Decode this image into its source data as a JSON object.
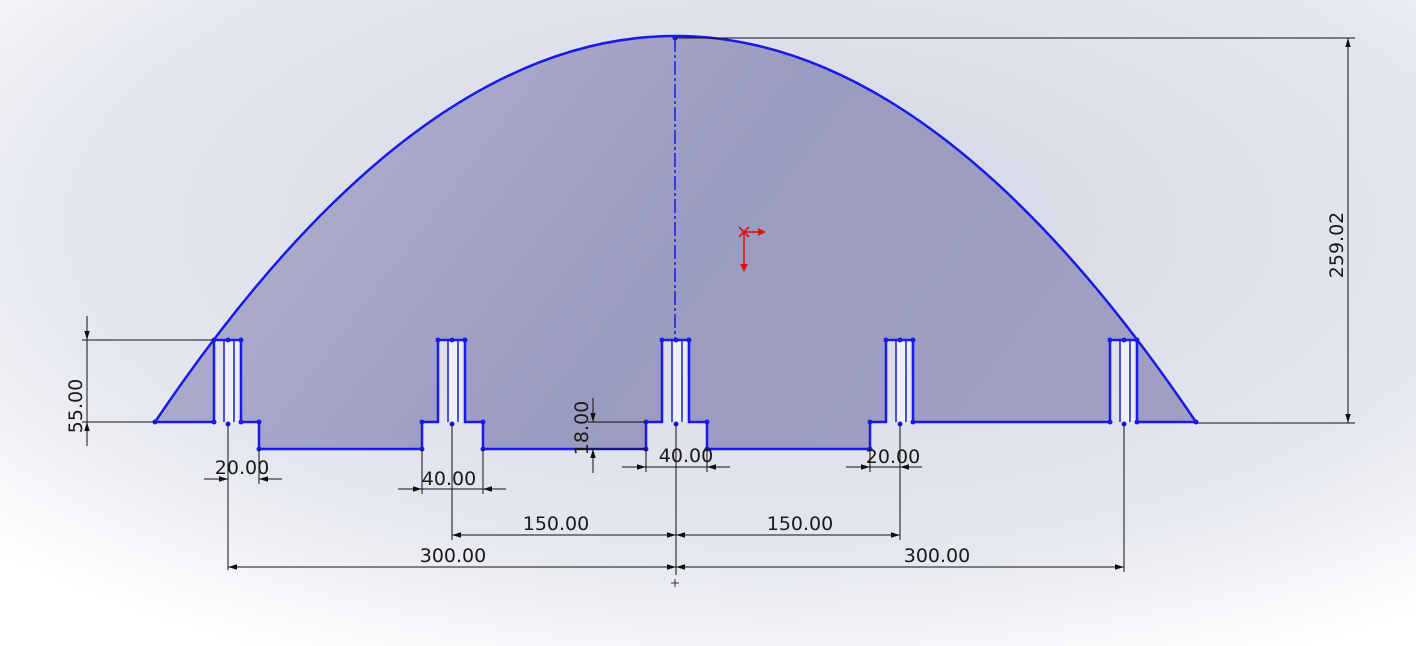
{
  "dimensions": {
    "height_total": "259.02",
    "slot_height": "55.00",
    "step_depth": "18.00",
    "width_left_slot": "20.00",
    "width_left_mid": "40.00",
    "width_center": "40.00",
    "width_right_mid": "20.00",
    "offset_left_150": "150.00",
    "offset_right_150": "150.00",
    "offset_left_300": "300.00",
    "offset_right_300": "300.00"
  },
  "colors": {
    "background_edge": "#ffffff",
    "background_center": "#d9dbe7",
    "face_fill": "#9c9dc3",
    "sketch_line": "#1a1ae6",
    "dimension_line": "#111111",
    "triad_color": "#e01010"
  }
}
